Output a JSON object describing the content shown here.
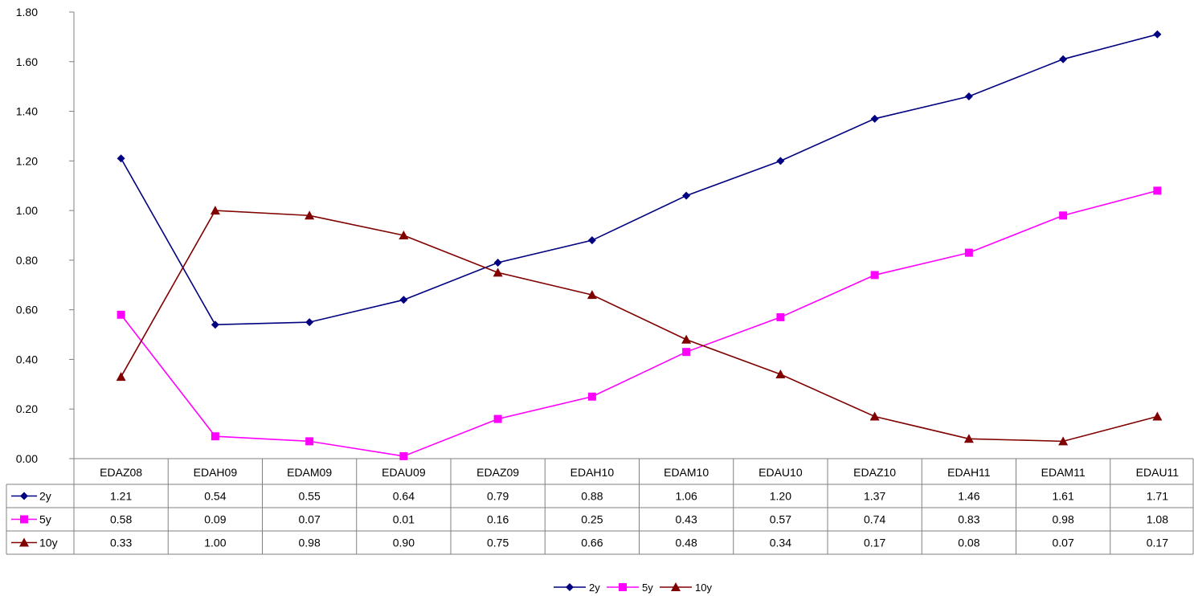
{
  "chart_data": {
    "type": "line",
    "categories": [
      "EDAZ08",
      "EDAH09",
      "EDAM09",
      "EDAU09",
      "EDAZ09",
      "EDAH10",
      "EDAM10",
      "EDAU10",
      "EDAZ10",
      "EDAH11",
      "EDAM11",
      "EDAU11"
    ],
    "series": [
      {
        "name": "2y",
        "color": "#000080",
        "marker": "diamond",
        "values": [
          1.21,
          0.54,
          0.55,
          0.64,
          0.79,
          0.88,
          1.06,
          1.2,
          1.37,
          1.46,
          1.61,
          1.71
        ],
        "labels": [
          "1.21",
          "0.54",
          "0.55",
          "0.64",
          "0.79",
          "0.88",
          "1.06",
          "1.20",
          "1.37",
          "1.46",
          "1.61",
          "1.71"
        ]
      },
      {
        "name": "5y",
        "color": "#FF00FF",
        "marker": "square",
        "values": [
          0.58,
          0.09,
          0.07,
          0.01,
          0.16,
          0.25,
          0.43,
          0.57,
          0.74,
          0.83,
          0.98,
          1.08
        ],
        "labels": [
          "0.58",
          "0.09",
          "0.07",
          "0.01",
          "0.16",
          "0.25",
          "0.43",
          "0.57",
          "0.74",
          "0.83",
          "0.98",
          "1.08"
        ]
      },
      {
        "name": "10y",
        "color": "#800000",
        "marker": "triangle",
        "values": [
          0.33,
          1.0,
          0.98,
          0.9,
          0.75,
          0.66,
          0.48,
          0.34,
          0.17,
          0.08,
          0.07,
          0.17
        ],
        "labels": [
          "0.33",
          "1.00",
          "0.98",
          "0.90",
          "0.75",
          "0.66",
          "0.48",
          "0.34",
          "0.17",
          "0.08",
          "0.07",
          "0.17"
        ]
      }
    ],
    "ylim": [
      0,
      1.8
    ],
    "yticks": [
      "0.00",
      "0.20",
      "0.40",
      "0.60",
      "0.80",
      "1.00",
      "1.20",
      "1.40",
      "1.60",
      "1.80"
    ],
    "grid": false,
    "data_table": true,
    "legend_position": "bottom"
  }
}
